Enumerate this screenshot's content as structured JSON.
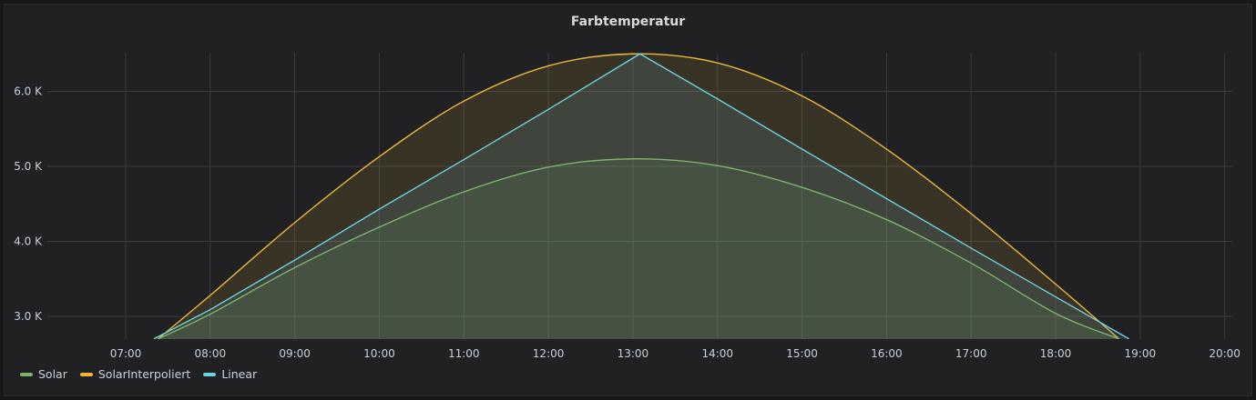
{
  "panel": {
    "title": "Farbtemperatur"
  },
  "colors": {
    "Solar": "#7eb26d",
    "SolarInterpoliert": "#eab839",
    "Linear": "#6ed0e0",
    "grid": "#3a3b3f"
  },
  "chart_data": {
    "type": "area",
    "title": "Farbtemperatur",
    "xlabel": "",
    "ylabel": "",
    "xlim": [
      "06:35",
      "20:10"
    ],
    "ylim": [
      2700,
      6580
    ],
    "x_ticks": [
      "07:00",
      "08:00",
      "09:00",
      "10:00",
      "11:00",
      "12:00",
      "13:00",
      "14:00",
      "15:00",
      "16:00",
      "17:00",
      "18:00",
      "19:00",
      "20:00"
    ],
    "y_ticks": [
      {
        "value": 3000,
        "label": "3.0 K"
      },
      {
        "value": 4000,
        "label": "4.0 K"
      },
      {
        "value": 5000,
        "label": "5.0 K"
      },
      {
        "value": 6000,
        "label": "6.0 K"
      }
    ],
    "grid": true,
    "legend": "bottom-left",
    "series": [
      {
        "name": "Solar",
        "x": [
          "07:23",
          "08:00",
          "09:00",
          "10:00",
          "11:00",
          "12:00",
          "13:00",
          "14:00",
          "15:00",
          "16:00",
          "17:00",
          "18:00",
          "18:45"
        ],
        "values": [
          2700,
          3030,
          3650,
          4190,
          4660,
          4990,
          5100,
          5010,
          4720,
          4290,
          3710,
          3040,
          2700
        ]
      },
      {
        "name": "SolarInterpoliert",
        "x": [
          "07:23",
          "08:00",
          "09:00",
          "10:00",
          "11:00",
          "12:00",
          "13:00",
          "14:00",
          "15:00",
          "16:00",
          "17:00",
          "18:00",
          "18:45"
        ],
        "values": [
          2700,
          3280,
          4250,
          5130,
          5870,
          6340,
          6500,
          6380,
          5940,
          5230,
          4370,
          3430,
          2700
        ]
      },
      {
        "name": "Linear",
        "x": [
          "07:20",
          "08:00",
          "09:00",
          "10:00",
          "11:00",
          "12:00",
          "13:05",
          "14:00",
          "15:00",
          "16:00",
          "17:00",
          "18:00",
          "18:52"
        ],
        "values": [
          2700,
          3090,
          3750,
          4430,
          5090,
          5760,
          6500,
          5900,
          5230,
          4570,
          3910,
          3260,
          2700
        ]
      }
    ]
  }
}
